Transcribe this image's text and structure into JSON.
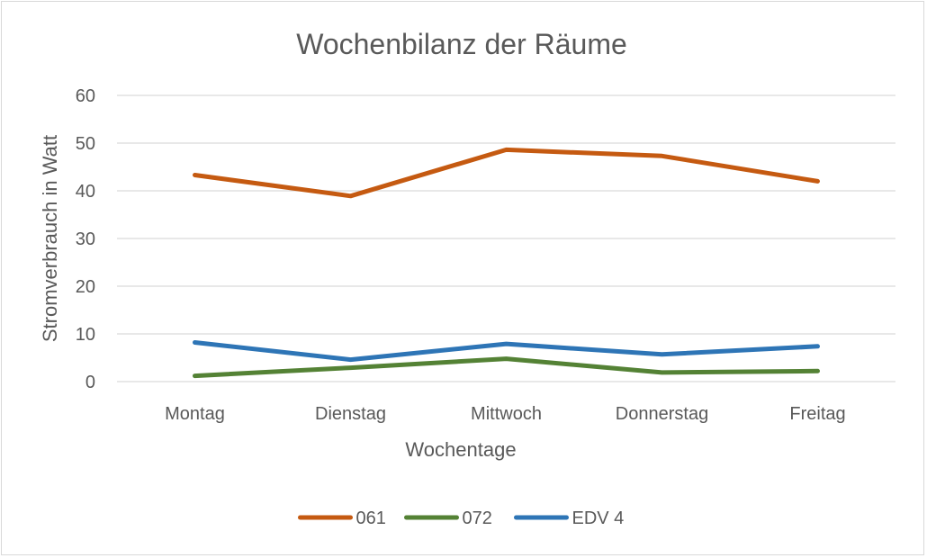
{
  "chart_data": {
    "type": "line",
    "title": "Wochenbilanz der Räume",
    "xlabel": "Wochentage",
    "ylabel": "Stromverbrauch in Watt",
    "categories": [
      "Montag",
      "Dienstag",
      "Mittwoch",
      "Donnerstag",
      "Freitag"
    ],
    "ylim": [
      0,
      60
    ],
    "yticks": [
      "0",
      "10",
      "20",
      "30",
      "40",
      "50",
      "60"
    ],
    "grid": true,
    "legend_position": "bottom",
    "series": [
      {
        "name": "061",
        "color": "#C55A11",
        "values": [
          43.3,
          38.9,
          48.6,
          47.3,
          42.0
        ]
      },
      {
        "name": "072",
        "color": "#548235",
        "values": [
          1.2,
          2.9,
          4.8,
          1.9,
          2.2
        ]
      },
      {
        "name": "EDV 4",
        "color": "#2E75B6",
        "values": [
          8.2,
          4.6,
          7.9,
          5.7,
          7.4
        ]
      }
    ]
  }
}
